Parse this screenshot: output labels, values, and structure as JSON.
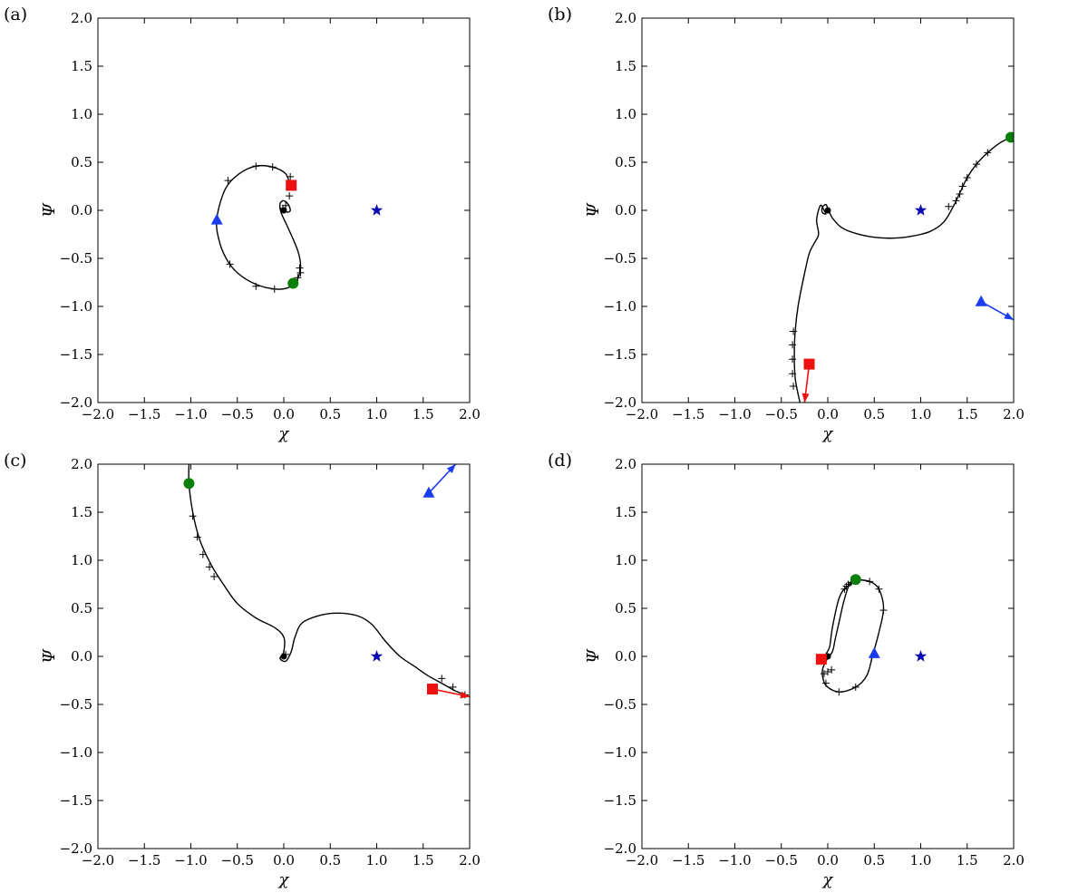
{
  "chart_data": [
    {
      "panel_label": "(a)",
      "type": "line",
      "xlabel": "χ",
      "ylabel": "Ψ",
      "xlim": [
        -2.0,
        2.0
      ],
      "ylim": [
        -2.0,
        2.0
      ],
      "xticks": [
        "−2.0",
        "−1.5",
        "−1.0",
        "−0.5",
        "0.0",
        "0.5",
        "1.0",
        "1.5",
        "2.0"
      ],
      "yticks": [
        "−2.0",
        "−1.5",
        "−1.0",
        "−0.5",
        "0.0",
        "0.5",
        "1.0",
        "1.5",
        "2.0"
      ],
      "trajectory": [
        [
          0.07,
          0.25
        ],
        [
          0.02,
          0.38
        ],
        [
          -0.12,
          0.45
        ],
        [
          -0.3,
          0.46
        ],
        [
          -0.48,
          0.38
        ],
        [
          -0.63,
          0.22
        ],
        [
          -0.72,
          -0.08
        ],
        [
          -0.7,
          -0.3
        ],
        [
          -0.62,
          -0.5
        ],
        [
          -0.5,
          -0.65
        ],
        [
          -0.3,
          -0.77
        ],
        [
          -0.08,
          -0.82
        ],
        [
          0.06,
          -0.8
        ],
        [
          0.14,
          -0.73
        ],
        [
          0.18,
          -0.6
        ],
        [
          0.16,
          -0.45
        ],
        [
          0.1,
          -0.3
        ],
        [
          0.03,
          -0.15
        ],
        [
          -0.03,
          -0.02
        ],
        [
          -0.04,
          0.07
        ],
        [
          0.0,
          0.1
        ],
        [
          0.05,
          0.06
        ],
        [
          0.07,
          0.0
        ],
        [
          0.04,
          -0.02
        ],
        [
          0.0,
          0.0
        ]
      ],
      "tick_markers": [
        [
          0.07,
          0.35
        ],
        [
          -0.3,
          0.46
        ],
        [
          -0.12,
          0.45
        ],
        [
          -0.6,
          0.31
        ],
        [
          -0.58,
          -0.56
        ],
        [
          -0.3,
          -0.79
        ],
        [
          -0.1,
          -0.82
        ],
        [
          0.15,
          -0.7
        ],
        [
          0.18,
          -0.65
        ],
        [
          0.17,
          -0.6
        ],
        [
          0.06,
          0.15
        ],
        [
          0.02,
          0.05
        ],
        [
          -0.01,
          0.02
        ]
      ],
      "star": [
        1.0,
        0.0
      ],
      "circle": [
        0.1,
        -0.76
      ],
      "square": [
        0.08,
        0.26
      ],
      "triangle": [
        -0.72,
        -0.1
      ],
      "square_arrow": null,
      "triangle_arrow": null,
      "colors": {
        "curve": "#000000",
        "star": "#0a0ab4",
        "circle": "#0a800a",
        "square": "#ee1111",
        "triangle": "#1a3cf0"
      }
    },
    {
      "panel_label": "(b)",
      "type": "line",
      "xlabel": "χ",
      "ylabel": "Ψ",
      "xlim": [
        -2.0,
        2.0
      ],
      "ylim": [
        -2.0,
        2.0
      ],
      "xticks": [
        "−2.0",
        "−1.5",
        "−1.0",
        "−0.5",
        "0.0",
        "0.5",
        "1.0",
        "1.5",
        "2.0"
      ],
      "yticks": [
        "−2.0",
        "−1.5",
        "−1.0",
        "−0.5",
        "0.0",
        "0.5",
        "1.0",
        "1.5",
        "2.0"
      ],
      "trajectory": [
        [
          1.97,
          0.76
        ],
        [
          1.85,
          0.7
        ],
        [
          1.72,
          0.6
        ],
        [
          1.6,
          0.48
        ],
        [
          1.5,
          0.34
        ],
        [
          1.42,
          0.18
        ],
        [
          1.35,
          0.04
        ],
        [
          1.25,
          -0.12
        ],
        [
          1.1,
          -0.22
        ],
        [
          0.9,
          -0.27
        ],
        [
          0.7,
          -0.29
        ],
        [
          0.5,
          -0.28
        ],
        [
          0.3,
          -0.24
        ],
        [
          0.15,
          -0.18
        ],
        [
          0.05,
          -0.08
        ],
        [
          0.0,
          0.02
        ],
        [
          -0.02,
          0.06
        ],
        [
          -0.06,
          0.03
        ],
        [
          -0.06,
          -0.02
        ],
        [
          -0.02,
          -0.04
        ],
        [
          -0.04,
          0.0
        ],
        [
          -0.08,
          0.05
        ],
        [
          -0.12,
          -0.1
        ],
        [
          -0.1,
          -0.25
        ],
        [
          -0.15,
          -0.35
        ],
        [
          -0.2,
          -0.45
        ],
        [
          -0.26,
          -0.7
        ],
        [
          -0.32,
          -1.0
        ],
        [
          -0.35,
          -1.25
        ],
        [
          -0.36,
          -1.5
        ],
        [
          -0.35,
          -1.75
        ],
        [
          -0.3,
          -2.0
        ]
      ],
      "tick_markers": [
        [
          1.72,
          0.6
        ],
        [
          1.6,
          0.48
        ],
        [
          1.5,
          0.34
        ],
        [
          1.45,
          0.25
        ],
        [
          1.42,
          0.17
        ],
        [
          1.38,
          0.1
        ],
        [
          1.3,
          0.04
        ],
        [
          -0.37,
          -1.26
        ],
        [
          -0.38,
          -1.4
        ],
        [
          -0.38,
          -1.55
        ],
        [
          -0.38,
          -1.7
        ],
        [
          -0.37,
          -1.83
        ]
      ],
      "star": [
        1.0,
        0.0
      ],
      "circle": [
        1.97,
        0.76
      ],
      "square": [
        -0.2,
        -1.6
      ],
      "triangle": [
        1.65,
        -0.95
      ],
      "square_arrow": [
        [
          -0.2,
          -1.6
        ],
        [
          -0.25,
          -2.0
        ]
      ],
      "triangle_arrow": [
        [
          1.65,
          -0.95
        ],
        [
          2.0,
          -1.14
        ]
      ],
      "colors": {
        "curve": "#000000",
        "star": "#0a0ab4",
        "circle": "#0a800a",
        "square": "#ee1111",
        "triangle": "#1a3cf0"
      }
    },
    {
      "panel_label": "(c)",
      "type": "line",
      "xlabel": "χ",
      "ylabel": "Ψ",
      "xlim": [
        -2.0,
        2.0
      ],
      "ylim": [
        -2.0,
        2.0
      ],
      "xticks": [
        "−2.0",
        "−1.5",
        "−1.0",
        "−0.5",
        "0.0",
        "0.5",
        "1.0",
        "1.5",
        "2.0"
      ],
      "yticks": [
        "−2.0",
        "−1.5",
        "−1.0",
        "−0.5",
        "0.0",
        "0.5",
        "1.0",
        "1.5",
        "2.0"
      ],
      "trajectory": [
        [
          -1.02,
          2.0
        ],
        [
          -1.02,
          1.8
        ],
        [
          -0.98,
          1.5
        ],
        [
          -0.9,
          1.2
        ],
        [
          -0.78,
          0.95
        ],
        [
          -0.65,
          0.75
        ],
        [
          -0.5,
          0.55
        ],
        [
          -0.3,
          0.4
        ],
        [
          -0.1,
          0.3
        ],
        [
          0.0,
          0.2
        ],
        [
          0.0,
          0.05
        ],
        [
          -0.04,
          -0.02
        ],
        [
          0.02,
          -0.05
        ],
        [
          0.08,
          0.05
        ],
        [
          0.12,
          0.2
        ],
        [
          0.2,
          0.35
        ],
        [
          0.4,
          0.43
        ],
        [
          0.6,
          0.45
        ],
        [
          0.8,
          0.42
        ],
        [
          0.95,
          0.33
        ],
        [
          1.1,
          0.15
        ],
        [
          1.25,
          0.0
        ],
        [
          1.4,
          -0.1
        ],
        [
          1.55,
          -0.2
        ],
        [
          1.7,
          -0.28
        ],
        [
          1.85,
          -0.36
        ],
        [
          2.0,
          -0.42
        ]
      ],
      "tick_markers": [
        [
          -0.98,
          1.46
        ],
        [
          -0.93,
          1.24
        ],
        [
          -0.87,
          1.06
        ],
        [
          -0.8,
          0.93
        ],
        [
          -0.75,
          0.83
        ],
        [
          1.7,
          -0.23
        ],
        [
          1.82,
          -0.32
        ],
        [
          1.95,
          -0.4
        ],
        [
          0.02,
          0.02
        ]
      ],
      "star": [
        1.0,
        0.0
      ],
      "circle": [
        -1.02,
        1.8
      ],
      "square": [
        1.6,
        -0.34
      ],
      "triangle": [
        1.56,
        1.7
      ],
      "square_arrow": [
        [
          1.6,
          -0.34
        ],
        [
          2.0,
          -0.42
        ]
      ],
      "triangle_arrow": [
        [
          1.56,
          1.7
        ],
        [
          1.85,
          2.0
        ]
      ],
      "colors": {
        "curve": "#000000",
        "star": "#0a0ab4",
        "circle": "#0a800a",
        "square": "#ee1111",
        "triangle": "#1a3cf0"
      }
    },
    {
      "panel_label": "(d)",
      "type": "line",
      "xlabel": "χ",
      "ylabel": "Ψ",
      "xlim": [
        -2.0,
        2.0
      ],
      "ylim": [
        -2.0,
        2.0
      ],
      "xticks": [
        "−2.0",
        "−1.5",
        "−1.0",
        "−0.5",
        "0.0",
        "0.5",
        "1.0",
        "1.5",
        "2.0"
      ],
      "yticks": [
        "−2.0",
        "−1.5",
        "−1.0",
        "−0.5",
        "0.0",
        "0.5",
        "1.0",
        "1.5",
        "2.0"
      ],
      "trajectory": [
        [
          0.3,
          0.8
        ],
        [
          0.45,
          0.78
        ],
        [
          0.55,
          0.7
        ],
        [
          0.6,
          0.5
        ],
        [
          0.55,
          0.25
        ],
        [
          0.48,
          0.0
        ],
        [
          0.42,
          -0.2
        ],
        [
          0.3,
          -0.32
        ],
        [
          0.12,
          -0.37
        ],
        [
          -0.02,
          -0.3
        ],
        [
          -0.06,
          -0.16
        ],
        [
          -0.02,
          -0.05
        ],
        [
          0.05,
          0.05
        ],
        [
          0.08,
          0.18
        ],
        [
          0.12,
          0.35
        ],
        [
          0.18,
          0.6
        ],
        [
          0.25,
          0.78
        ],
        [
          0.35,
          0.8
        ],
        [
          0.2,
          0.72
        ],
        [
          0.12,
          0.6
        ],
        [
          0.05,
          0.3
        ],
        [
          0.02,
          0.1
        ],
        [
          -0.02,
          0.02
        ],
        [
          0.0,
          -0.02
        ],
        [
          0.03,
          0.0
        ]
      ],
      "tick_markers": [
        [
          0.45,
          0.78
        ],
        [
          0.55,
          0.7
        ],
        [
          0.6,
          0.48
        ],
        [
          0.3,
          -0.32
        ],
        [
          0.12,
          -0.37
        ],
        [
          -0.02,
          -0.28
        ],
        [
          -0.04,
          -0.18
        ],
        [
          0.0,
          -0.16
        ],
        [
          0.04,
          -0.14
        ],
        [
          0.18,
          0.7
        ],
        [
          0.2,
          0.73
        ],
        [
          0.22,
          0.75
        ],
        [
          0.25,
          0.77
        ]
      ],
      "star": [
        1.0,
        0.0
      ],
      "circle": [
        0.3,
        0.8
      ],
      "square": [
        -0.07,
        -0.03
      ],
      "triangle": [
        0.5,
        0.03
      ],
      "square_arrow": null,
      "triangle_arrow": null,
      "colors": {
        "curve": "#000000",
        "star": "#0a0ab4",
        "circle": "#0a800a",
        "square": "#ee1111",
        "triangle": "#1a3cf0"
      }
    }
  ]
}
